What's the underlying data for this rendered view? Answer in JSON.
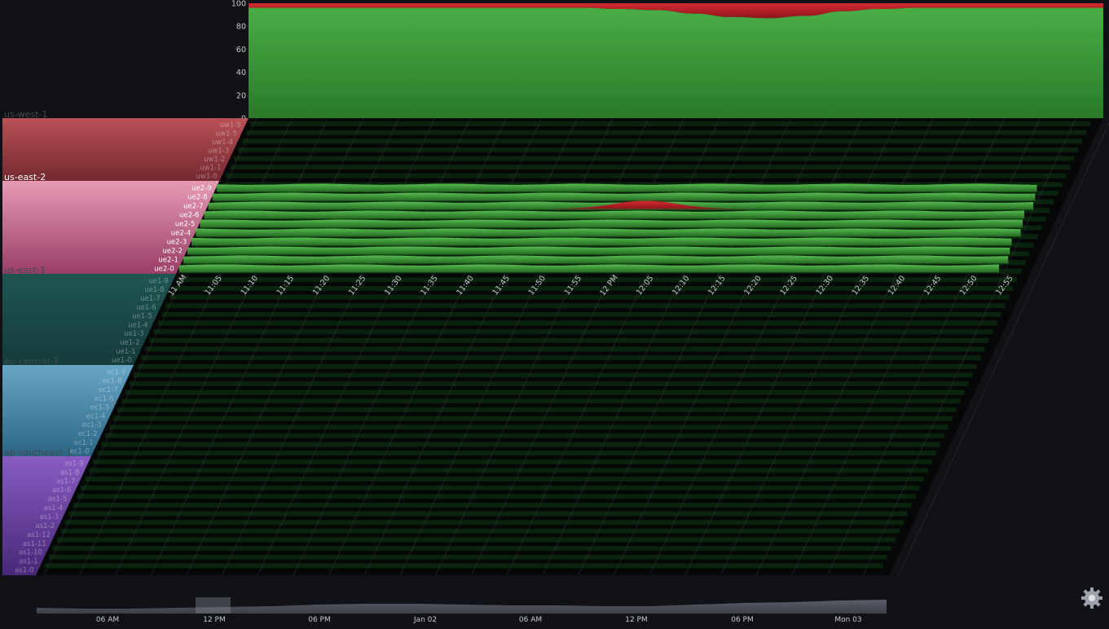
{
  "colors": {
    "background": "#111217",
    "ok": "#3ea83b",
    "error": "#c0232a",
    "grid": "#3a3d46",
    "text": "#c7c9d1"
  },
  "top_chart": {
    "y_ticks": [
      "100",
      "80",
      "60",
      "40",
      "20",
      "0"
    ]
  },
  "time_axis": {
    "ticks": [
      "11 AM",
      "11:05",
      "11:10",
      "11:15",
      "11:20",
      "11:25",
      "11:30",
      "11:35",
      "11:40",
      "11:45",
      "11:50",
      "11:55",
      "12 PM",
      "12:05",
      "12:10",
      "12:15",
      "12:20",
      "12:25",
      "12:30",
      "12:35",
      "12:40",
      "12:45",
      "12:50",
      "12:55"
    ]
  },
  "regions": [
    {
      "name": "us-west-1",
      "color": "#c8565d",
      "color_dark": "#7c2b31",
      "active": false,
      "hosts": [
        "uw1-9",
        "uw1-5",
        "uw1-4",
        "uw1-3",
        "uw1-2",
        "uw1-1",
        "uw1-0"
      ]
    },
    {
      "name": "us-east-2",
      "color": "#e69ab5",
      "color_dark": "#9a3e66",
      "active": true,
      "hosts": [
        "ue2-9",
        "ue2-8",
        "ue2-7",
        "ue2-6",
        "ue2-5",
        "ue2-4",
        "ue2-3",
        "ue2-2",
        "ue2-1",
        "ue2-0"
      ]
    },
    {
      "name": "us-east-1",
      "color": "#1f5b58",
      "color_dark": "#163f3e",
      "active": false,
      "hosts": [
        "ue1-9",
        "ue1-8",
        "ue1-7",
        "ue1-6",
        "ue1-5",
        "ue1-4",
        "ue1-3",
        "ue1-2",
        "ue1-1",
        "ue1-0"
      ]
    },
    {
      "name": "eu-central-1",
      "color": "#6fb3d6",
      "color_dark": "#2f6d8f",
      "active": false,
      "hosts": [
        "ec1-9",
        "ec1-8",
        "ec1-7",
        "ec1-6",
        "ec1-5",
        "ec1-4",
        "ec1-3",
        "ec1-2",
        "ec1-1",
        "ec1-0"
      ]
    },
    {
      "name": "ap-southeast-1",
      "color": "#9363d2",
      "color_dark": "#4c2a80",
      "active": false,
      "hosts": [
        "as1-9",
        "as1-8",
        "as1-7",
        "as1-6",
        "as1-5",
        "as1-4",
        "as1-3",
        "as1-2",
        "as1-12",
        "as1-11",
        "as1-10",
        "as1-1",
        "as1-0"
      ]
    }
  ],
  "navigator": {
    "ticks": [
      "06 AM",
      "12 PM",
      "06 PM",
      "Jan 02",
      "06 AM",
      "12 PM",
      "06 PM",
      "Mon 03"
    ]
  },
  "icons": {
    "settings": "gear-icon"
  },
  "chart_data": {
    "type": "area",
    "title": "",
    "ylim": [
      0,
      100
    ],
    "y_ticks": [
      0,
      20,
      40,
      60,
      80,
      100
    ],
    "x": [
      "11 AM",
      "11:05",
      "11:10",
      "11:15",
      "11:20",
      "11:25",
      "11:30",
      "11:35",
      "11:40",
      "11:45",
      "11:50",
      "11:55",
      "12 PM",
      "12:05",
      "12:10",
      "12:15",
      "12:20",
      "12:25",
      "12:30",
      "12:35",
      "12:40",
      "12:45",
      "12:50",
      "12:55"
    ],
    "series": [
      {
        "values": [
          96,
          96,
          96,
          96,
          96,
          96,
          96,
          96,
          96,
          96,
          95,
          94,
          91,
          88,
          87,
          89,
          93,
          95,
          96,
          96,
          96,
          96,
          96,
          96
        ]
      },
      {
        "values": [
          4,
          4,
          4,
          4,
          4,
          4,
          4,
          4,
          4,
          4,
          5,
          6,
          9,
          12,
          13,
          11,
          7,
          5,
          4,
          4,
          4,
          4,
          4,
          4
        ]
      }
    ],
    "grid": true,
    "legend": "none"
  }
}
